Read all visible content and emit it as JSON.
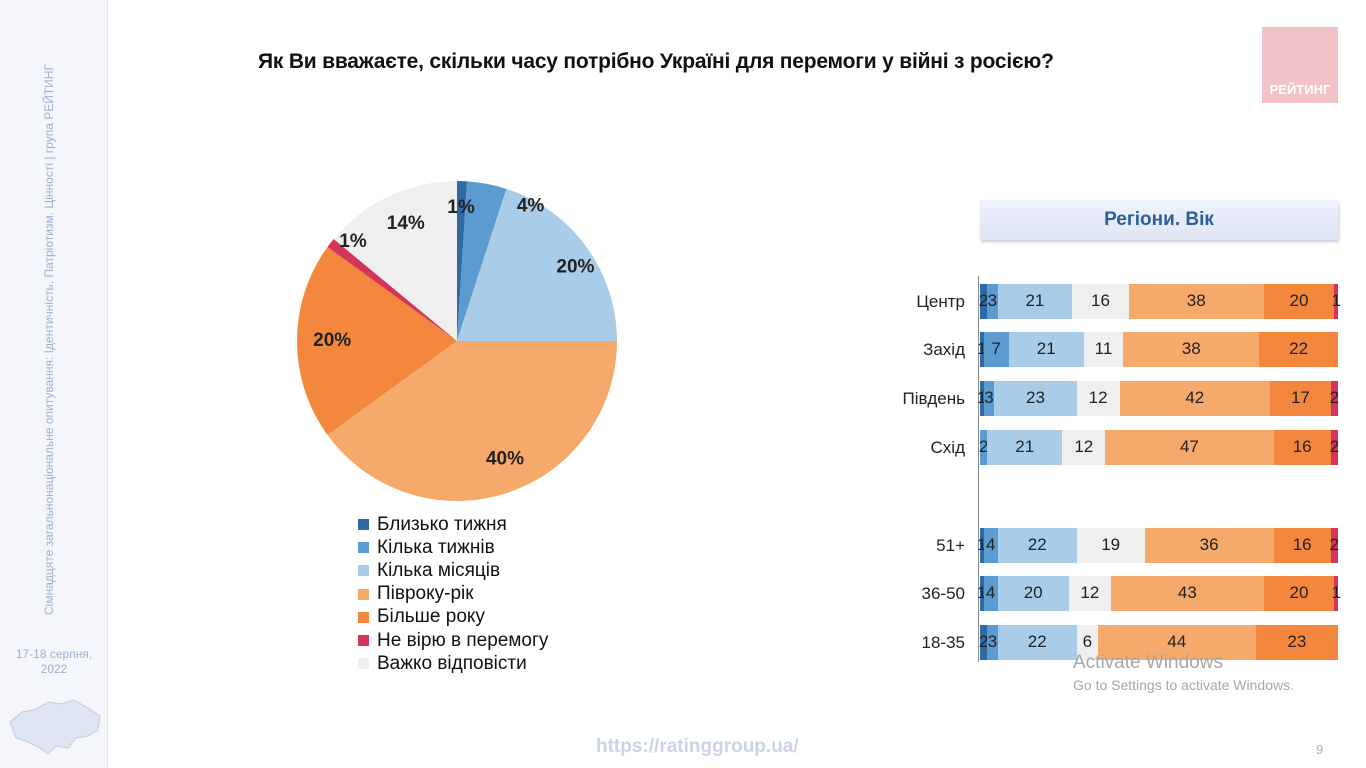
{
  "title": "Як Ви вважаєте, скільки часу потрібно Україні для перемоги у війні з росією?",
  "logo_text": "РЕЙТИНГ",
  "sidebar": {
    "vertical_text": "Сімнадцяте загальнонаціональне опитування: Ідентичність. Патріотизм. Цінності | група РЕЙТИНГ",
    "date": "17-18 серпня, 2022"
  },
  "footer": {
    "url": "https://ratinggroup.ua/",
    "page": "9"
  },
  "watermark": {
    "line1": "Activate Windows",
    "line2": "Go to Settings to activate Windows."
  },
  "colors": {
    "near_week": "#2e6aa6",
    "few_weeks": "#5b9bd0",
    "few_months": "#a9cde9",
    "half_year": "#f5a96b",
    "more_year": "#f4873e",
    "no_believe": "#d6335a",
    "hard": "#efefef"
  },
  "chart_data": [
    {
      "type": "pie",
      "categories": [
        "Близько тижня",
        "Кілька тижнів",
        "Кілька місяців",
        "Півроку-рік",
        "Більше року",
        "Не вірю в перемогу",
        "Важко відповісти"
      ],
      "values": [
        1,
        4,
        20,
        40,
        20,
        1,
        14
      ],
      "labels": [
        "1%",
        "4%",
        "20%",
        "40%",
        "20%",
        "1%",
        "14%"
      ],
      "legend_position": "bottom"
    },
    {
      "type": "bar",
      "orientation": "horizontal-stacked",
      "header": "Регіони. Вік",
      "categories": [
        "Центр",
        "Захід",
        "Південь",
        "Схід",
        "51+",
        "36-50",
        "18-35"
      ],
      "series_order": [
        "Близько тижня",
        "Кілька тижнів",
        "Кілька місяців",
        "Півроку-рік",
        "Більше року",
        "Не вірю в перемогу",
        "Важко відповісти"
      ],
      "rows": [
        [
          2,
          3,
          21,
          38,
          20,
          1,
          16
        ],
        [
          1,
          7,
          21,
          38,
          22,
          0,
          11
        ],
        [
          1,
          3,
          23,
          42,
          17,
          2,
          12
        ],
        [
          0,
          2,
          21,
          47,
          16,
          2,
          12
        ],
        [
          1,
          4,
          22,
          36,
          16,
          2,
          19
        ],
        [
          1,
          4,
          20,
          43,
          20,
          1,
          12
        ],
        [
          2,
          3,
          22,
          44,
          23,
          0,
          6
        ]
      ]
    }
  ]
}
